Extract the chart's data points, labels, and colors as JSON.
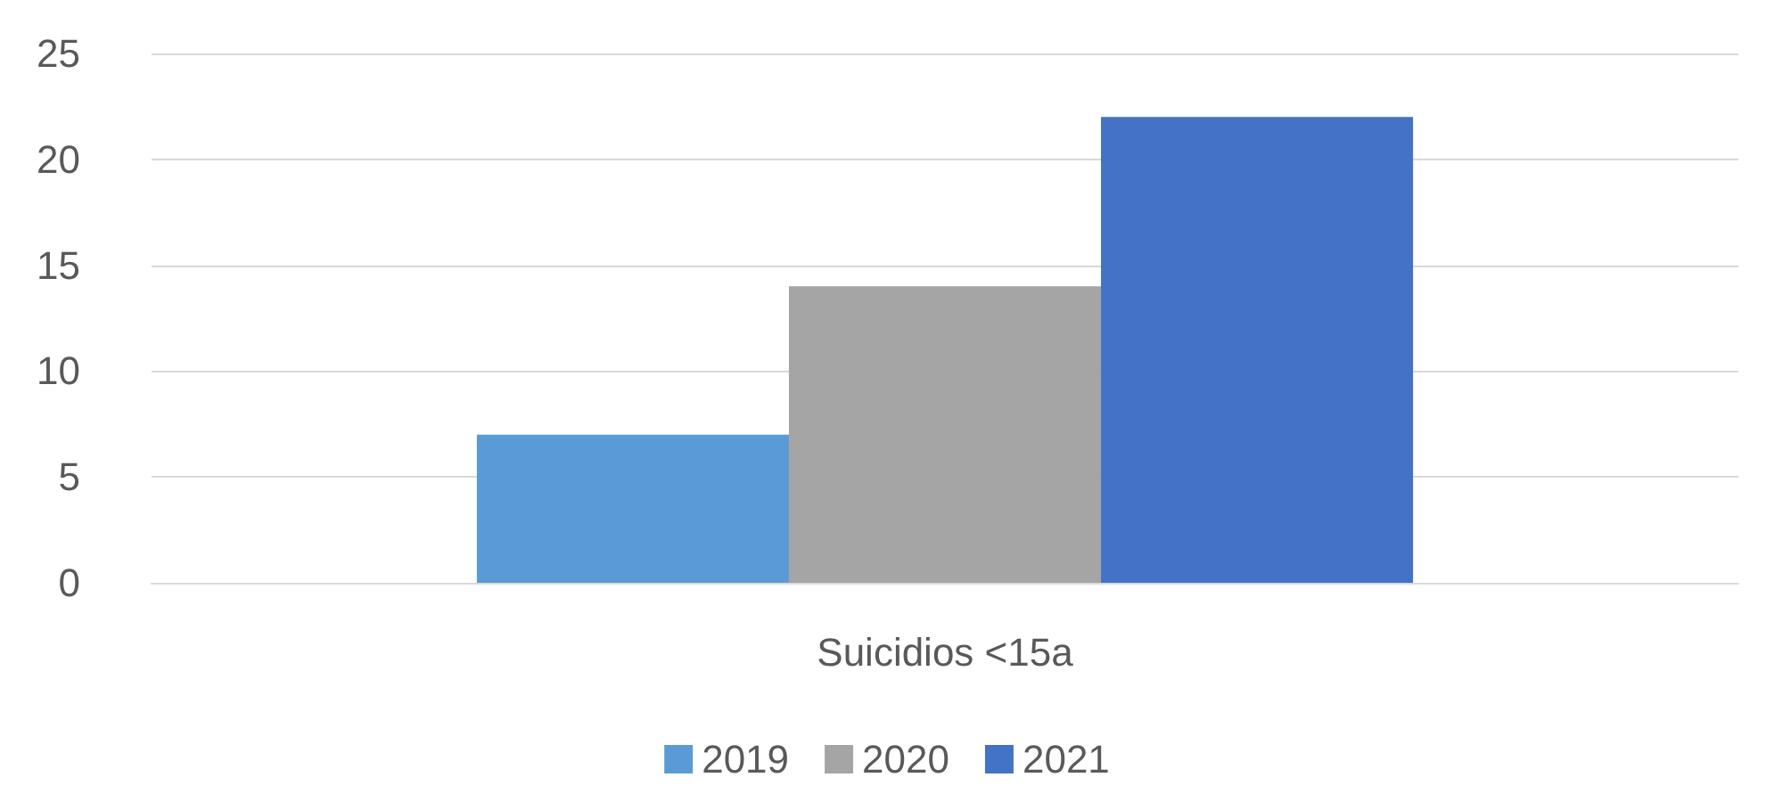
{
  "chart_data": {
    "type": "bar",
    "categories": [
      "Suicidios <15a"
    ],
    "series": [
      {
        "name": "2019",
        "color": "#5b9bd5",
        "values": [
          7
        ]
      },
      {
        "name": "2020",
        "color": "#a5a5a5",
        "values": [
          14
        ]
      },
      {
        "name": "2021",
        "color": "#4472c4",
        "values": [
          22
        ]
      }
    ],
    "ylim": [
      0,
      25
    ],
    "yticks": [
      0,
      5,
      10,
      15,
      20,
      25
    ],
    "grid": "y",
    "legend": "bottom"
  }
}
